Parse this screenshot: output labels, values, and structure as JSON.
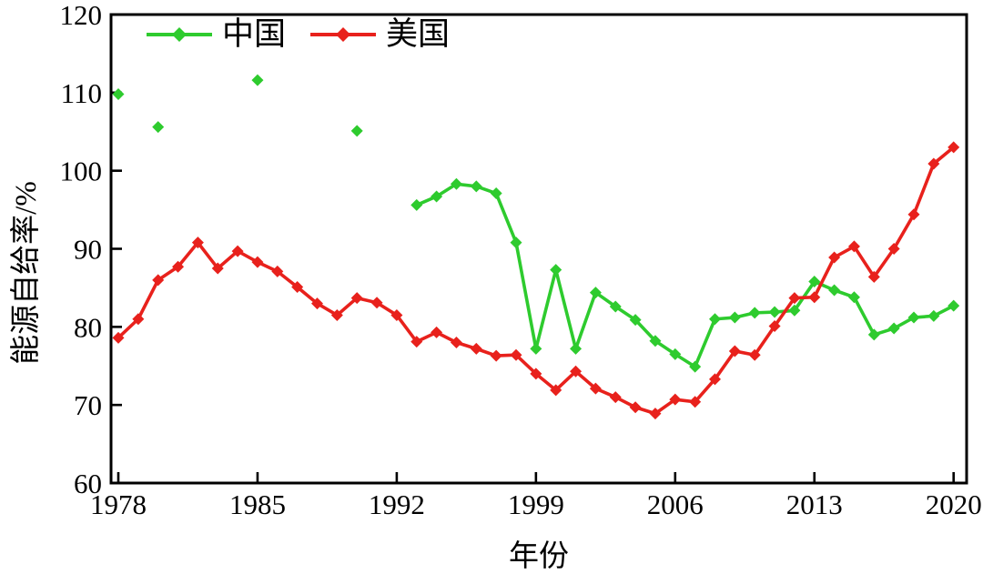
{
  "figure": {
    "background": "#ffffff"
  },
  "legend": {
    "items": [
      {
        "label": "中国",
        "color": "#2ECB2E"
      },
      {
        "label": "美国",
        "color": "#E8211C"
      }
    ]
  },
  "chart_data": {
    "type": "line",
    "title": "",
    "xlabel": "年份",
    "ylabel": "能源自给率/%",
    "ylim": [
      60,
      120
    ],
    "xticks": [
      1978,
      1985,
      1992,
      1999,
      2006,
      2013,
      2020
    ],
    "yticks": [
      60,
      70,
      80,
      90,
      100,
      110,
      120
    ],
    "grid": false,
    "legend_position": "top-inside",
    "marker": "diamond",
    "series": [
      {
        "name": "中国",
        "color": "#2ECB2E",
        "segments": [
          {
            "mode": "markers",
            "years": [
              1978,
              1980,
              1985,
              1990
            ],
            "values": [
              109.8,
              105.6,
              111.6,
              105.1
            ]
          },
          {
            "mode": "line+markers",
            "years": [
              1993,
              1994,
              1995,
              1996,
              1997,
              1998,
              1999,
              2000,
              2001,
              2002,
              2003,
              2004,
              2005,
              2006,
              2007,
              2008,
              2009,
              2010,
              2011,
              2012,
              2013,
              2014,
              2015,
              2016,
              2017,
              2018,
              2019,
              2020
            ],
            "values": [
              95.6,
              96.7,
              98.3,
              98.0,
              97.1,
              90.8,
              77.2,
              87.3,
              77.2,
              84.4,
              82.6,
              80.9,
              78.2,
              76.5,
              74.9,
              81.0,
              81.2,
              81.8,
              81.9,
              82.1,
              85.8,
              84.7,
              83.8,
              79.0,
              79.8,
              81.2,
              81.4,
              82.7
            ]
          }
        ]
      },
      {
        "name": "美国",
        "color": "#E8211C",
        "segments": [
          {
            "mode": "line+markers",
            "years": [
              1978,
              1979,
              1980,
              1981,
              1982,
              1983,
              1984,
              1985,
              1986,
              1987,
              1988,
              1989,
              1990,
              1991,
              1992,
              1993,
              1994,
              1995,
              1996,
              1997,
              1998,
              1999,
              2000,
              2001,
              2002,
              2003,
              2004,
              2005,
              2006,
              2007,
              2008,
              2009,
              2010,
              2011,
              2012,
              2013,
              2014,
              2015,
              2016,
              2017,
              2018,
              2019,
              2020
            ],
            "values": [
              78.6,
              81.0,
              86.0,
              87.7,
              90.8,
              87.5,
              89.7,
              88.3,
              87.1,
              85.1,
              83.0,
              81.5,
              83.7,
              83.1,
              81.5,
              78.1,
              79.3,
              78.0,
              77.2,
              76.3,
              76.4,
              74.0,
              71.9,
              74.3,
              72.1,
              71.0,
              69.7,
              68.9,
              70.7,
              70.4,
              73.3,
              76.9,
              76.4,
              80.1,
              83.7,
              83.8,
              88.9,
              90.3,
              86.4,
              90.0,
              94.4,
              100.9,
              103.0
            ]
          }
        ]
      }
    ]
  }
}
